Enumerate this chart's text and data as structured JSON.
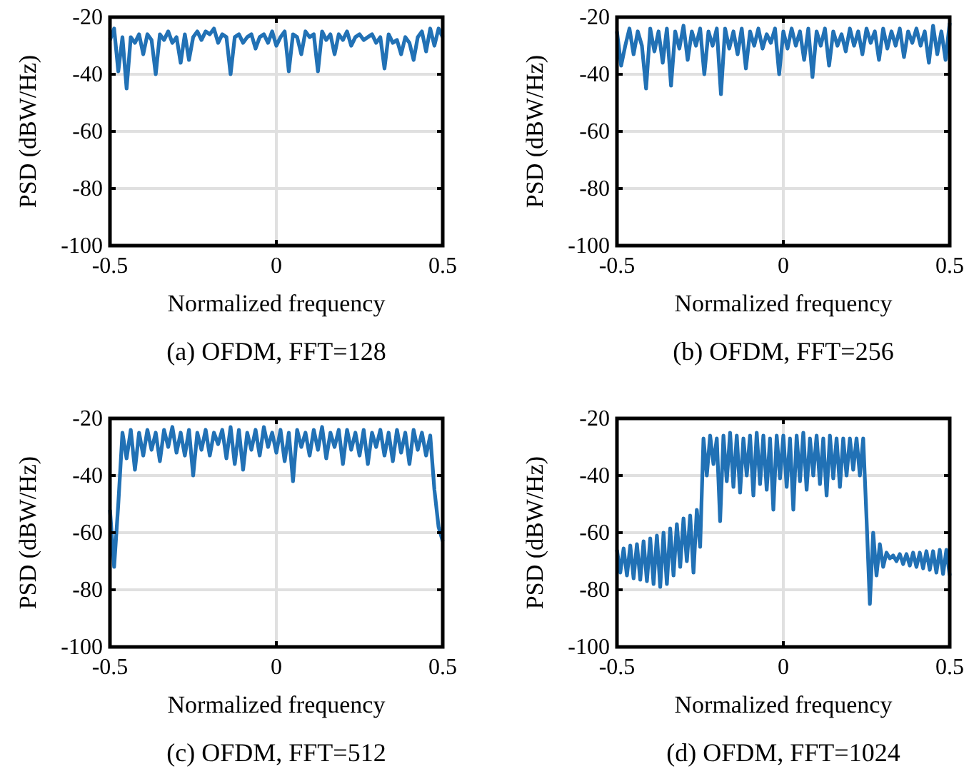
{
  "chart_data": [
    {
      "type": "line",
      "title": "(a) OFDM, FFT=128",
      "xlabel": "Normalized frequency",
      "ylabel": "PSD (dBW/Hz)",
      "xlim": [
        -0.5,
        0.5
      ],
      "xticks": [
        -0.5,
        0,
        0.5
      ],
      "ylim": [
        -100,
        -20
      ],
      "yticks": [
        -100,
        -80,
        -60,
        -40,
        -20
      ],
      "grid": true,
      "line_style": "solid",
      "x": [
        -0.5,
        -0.4875,
        -0.475,
        -0.4625,
        -0.45,
        -0.4375,
        -0.425,
        -0.4125,
        -0.4,
        -0.3875,
        -0.375,
        -0.3625,
        -0.35,
        -0.3375,
        -0.325,
        -0.3125,
        -0.3,
        -0.2875,
        -0.275,
        -0.2625,
        -0.25,
        -0.2375,
        -0.225,
        -0.2125,
        -0.2,
        -0.1875,
        -0.175,
        -0.1625,
        -0.15,
        -0.1375,
        -0.125,
        -0.1125,
        -0.1,
        -0.0875,
        -0.075,
        -0.0625,
        -0.05,
        -0.0375,
        -0.025,
        -0.0125,
        0,
        0.0125,
        0.025,
        0.0375,
        0.05,
        0.0625,
        0.075,
        0.0875,
        0.1,
        0.1125,
        0.125,
        0.1375,
        0.15,
        0.1625,
        0.175,
        0.1875,
        0.2,
        0.2125,
        0.225,
        0.2375,
        0.25,
        0.2625,
        0.275,
        0.2875,
        0.3,
        0.3125,
        0.325,
        0.3375,
        0.35,
        0.3625,
        0.375,
        0.3875,
        0.4,
        0.4125,
        0.425,
        0.4375,
        0.45,
        0.4625,
        0.475,
        0.4875,
        0.5
      ],
      "series": [
        {
          "color": "#2171b5",
          "values": [
            -28,
            -24,
            -39,
            -27,
            -45,
            -27,
            -29,
            -26,
            -33,
            -26,
            -28,
            -40,
            -26,
            -28,
            -25,
            -29,
            -27,
            -36,
            -26,
            -35,
            -27,
            -25,
            -28,
            -25,
            -26,
            -24,
            -29,
            -26,
            -27,
            -40,
            -27,
            -26,
            -29,
            -27,
            -26,
            -31,
            -27,
            -26,
            -29,
            -25,
            -30,
            -27,
            -25,
            -39,
            -26,
            -27,
            -33,
            -25,
            -27,
            -26,
            -39,
            -25,
            -28,
            -26,
            -33,
            -26,
            -28,
            -25,
            -30,
            -27,
            -26,
            -28,
            -27,
            -26,
            -29,
            -27,
            -38,
            -26,
            -29,
            -28,
            -33,
            -27,
            -29,
            -35,
            -27,
            -25,
            -32,
            -24,
            -30,
            -24,
            -27
          ]
        }
      ]
    },
    {
      "type": "line",
      "title": "(b) OFDM, FFT=256",
      "xlabel": "Normalized frequency",
      "ylabel": "PSD (dBW/Hz)",
      "xlim": [
        -0.5,
        0.5
      ],
      "xticks": [
        -0.5,
        0,
        0.5
      ],
      "ylim": [
        -100,
        -20
      ],
      "yticks": [
        -100,
        -80,
        -60,
        -40,
        -20
      ],
      "grid": true,
      "line_style": "solid",
      "x": [
        -0.5,
        -0.4875,
        -0.475,
        -0.4625,
        -0.45,
        -0.4375,
        -0.425,
        -0.4125,
        -0.4,
        -0.3875,
        -0.375,
        -0.3625,
        -0.35,
        -0.3375,
        -0.325,
        -0.3125,
        -0.3,
        -0.2875,
        -0.275,
        -0.2625,
        -0.25,
        -0.2375,
        -0.225,
        -0.2125,
        -0.2,
        -0.1875,
        -0.175,
        -0.1625,
        -0.15,
        -0.1375,
        -0.125,
        -0.1125,
        -0.1,
        -0.0875,
        -0.075,
        -0.0625,
        -0.05,
        -0.0375,
        -0.025,
        -0.0125,
        0,
        0.0125,
        0.025,
        0.0375,
        0.05,
        0.0625,
        0.075,
        0.0875,
        0.1,
        0.1125,
        0.125,
        0.1375,
        0.15,
        0.1625,
        0.175,
        0.1875,
        0.2,
        0.2125,
        0.225,
        0.2375,
        0.25,
        0.2625,
        0.275,
        0.2875,
        0.3,
        0.3125,
        0.325,
        0.3375,
        0.35,
        0.3625,
        0.375,
        0.3875,
        0.4,
        0.4125,
        0.425,
        0.4375,
        0.45,
        0.4625,
        0.475,
        0.4875,
        0.5
      ],
      "series": [
        {
          "color": "#2171b5",
          "values": [
            -25,
            -37,
            -30,
            -24,
            -33,
            -25,
            -30,
            -45,
            -24,
            -32,
            -25,
            -36,
            -24,
            -44,
            -25,
            -31,
            -23,
            -35,
            -25,
            -30,
            -24,
            -40,
            -25,
            -30,
            -24,
            -47,
            -24,
            -31,
            -25,
            -33,
            -24,
            -38,
            -25,
            -30,
            -24,
            -31,
            -26,
            -29,
            -24,
            -40,
            -25,
            -31,
            -24,
            -30,
            -25,
            -35,
            -24,
            -41,
            -25,
            -30,
            -24,
            -37,
            -25,
            -30,
            -26,
            -32,
            -24,
            -30,
            -25,
            -33,
            -24,
            -29,
            -25,
            -35,
            -24,
            -31,
            -25,
            -30,
            -24,
            -34,
            -25,
            -29,
            -24,
            -30,
            -25,
            -36,
            -23,
            -33,
            -25,
            -35,
            -22
          ]
        }
      ]
    },
    {
      "type": "line",
      "title": "(c) OFDM, FFT=512",
      "xlabel": "Normalized frequency",
      "ylabel": "PSD (dBW/Hz)",
      "xlim": [
        -0.5,
        0.5
      ],
      "xticks": [
        -0.5,
        0,
        0.5
      ],
      "ylim": [
        -100,
        -20
      ],
      "yticks": [
        -100,
        -80,
        -60,
        -40,
        -20
      ],
      "grid": true,
      "line_style": "solid",
      "x": [
        -0.5,
        -0.4875,
        -0.475,
        -0.4625,
        -0.45,
        -0.4375,
        -0.425,
        -0.4125,
        -0.4,
        -0.3875,
        -0.375,
        -0.3625,
        -0.35,
        -0.3375,
        -0.325,
        -0.3125,
        -0.3,
        -0.2875,
        -0.275,
        -0.2625,
        -0.25,
        -0.2375,
        -0.225,
        -0.2125,
        -0.2,
        -0.1875,
        -0.175,
        -0.1625,
        -0.15,
        -0.1375,
        -0.125,
        -0.1125,
        -0.1,
        -0.0875,
        -0.075,
        -0.0625,
        -0.05,
        -0.0375,
        -0.025,
        -0.0125,
        0,
        0.0125,
        0.025,
        0.0375,
        0.05,
        0.0625,
        0.075,
        0.0875,
        0.1,
        0.1125,
        0.125,
        0.1375,
        0.15,
        0.1625,
        0.175,
        0.1875,
        0.2,
        0.2125,
        0.225,
        0.2375,
        0.25,
        0.2625,
        0.275,
        0.2875,
        0.3,
        0.3125,
        0.325,
        0.3375,
        0.35,
        0.3625,
        0.375,
        0.3875,
        0.4,
        0.4125,
        0.425,
        0.4375,
        0.45,
        0.4625,
        0.475,
        0.4875,
        0.5
      ],
      "series": [
        {
          "color": "#2171b5",
          "values": [
            -52,
            -72,
            -50,
            -25,
            -34,
            -24,
            -38,
            -25,
            -33,
            -24,
            -31,
            -25,
            -35,
            -24,
            -30,
            -23,
            -32,
            -25,
            -33,
            -24,
            -40,
            -25,
            -31,
            -24,
            -33,
            -25,
            -29,
            -24,
            -34,
            -23,
            -36,
            -24,
            -38,
            -25,
            -31,
            -24,
            -33,
            -23,
            -30,
            -25,
            -32,
            -24,
            -35,
            -25,
            -42,
            -24,
            -30,
            -25,
            -33,
            -24,
            -31,
            -23,
            -34,
            -25,
            -30,
            -24,
            -36,
            -24,
            -31,
            -25,
            -33,
            -24,
            -36,
            -25,
            -30,
            -24,
            -33,
            -25,
            -35,
            -24,
            -32,
            -25,
            -36,
            -24,
            -31,
            -25,
            -33,
            -26,
            -45,
            -58,
            -63
          ]
        }
      ]
    },
    {
      "type": "line",
      "title": "(d) OFDM, FFT=1024",
      "xlabel": "Normalized frequency",
      "ylabel": "PSD (dBW/Hz)",
      "xlim": [
        -0.5,
        0.5
      ],
      "xticks": [
        -0.5,
        0,
        0.5
      ],
      "ylim": [
        -100,
        -20
      ],
      "yticks": [
        -100,
        -80,
        -60,
        -40,
        -20
      ],
      "grid": true,
      "line_style": "solid",
      "x": [
        -0.5,
        -0.49,
        -0.48,
        -0.47,
        -0.46,
        -0.45,
        -0.44,
        -0.43,
        -0.42,
        -0.41,
        -0.4,
        -0.39,
        -0.38,
        -0.37,
        -0.36,
        -0.35,
        -0.34,
        -0.33,
        -0.32,
        -0.31,
        -0.3,
        -0.29,
        -0.28,
        -0.27,
        -0.26,
        -0.25,
        -0.24,
        -0.23,
        -0.22,
        -0.21,
        -0.2,
        -0.19,
        -0.18,
        -0.17,
        -0.16,
        -0.15,
        -0.14,
        -0.13,
        -0.12,
        -0.11,
        -0.1,
        -0.09,
        -0.08,
        -0.07,
        -0.06,
        -0.05,
        -0.04,
        -0.03,
        -0.02,
        -0.01,
        0,
        0.01,
        0.02,
        0.03,
        0.04,
        0.05,
        0.06,
        0.07,
        0.08,
        0.09,
        0.1,
        0.11,
        0.12,
        0.13,
        0.14,
        0.15,
        0.16,
        0.17,
        0.18,
        0.19,
        0.2,
        0.21,
        0.22,
        0.23,
        0.24,
        0.25,
        0.26,
        0.27,
        0.28,
        0.29,
        0.3,
        0.31,
        0.32,
        0.33,
        0.34,
        0.35,
        0.36,
        0.37,
        0.38,
        0.39,
        0.4,
        0.41,
        0.42,
        0.43,
        0.44,
        0.45,
        0.46,
        0.47,
        0.48,
        0.49,
        0.5
      ],
      "series": [
        {
          "color": "#2171b5",
          "values": [
            -66,
            -74,
            -65.5,
            -75,
            -64.5,
            -76,
            -64,
            -76.5,
            -63,
            -77,
            -62,
            -78,
            -61,
            -79,
            -60,
            -78,
            -58.5,
            -75,
            -57,
            -72,
            -55,
            -70,
            -54,
            -74,
            -52,
            -65,
            -27,
            -40,
            -26,
            -36,
            -27,
            -56,
            -26,
            -42,
            -25,
            -44,
            -26,
            -46,
            -27,
            -40,
            -26,
            -47,
            -25,
            -43,
            -26,
            -45,
            -27,
            -52,
            -26,
            -41,
            -26,
            -44,
            -27,
            -52,
            -26,
            -42,
            -25,
            -45,
            -27,
            -40,
            -26,
            -43,
            -27,
            -47,
            -26,
            -41,
            -27,
            -44,
            -27,
            -40,
            -27,
            -38,
            -27,
            -40,
            -27,
            -55,
            -85,
            -60,
            -75,
            -64,
            -72,
            -67,
            -69,
            -68,
            -70,
            -67.5,
            -71,
            -67.5,
            -71.5,
            -67,
            -72,
            -67,
            -72.5,
            -66.5,
            -73,
            -66.5,
            -74,
            -66,
            -74.5,
            -66,
            -75
          ]
        }
      ]
    }
  ]
}
